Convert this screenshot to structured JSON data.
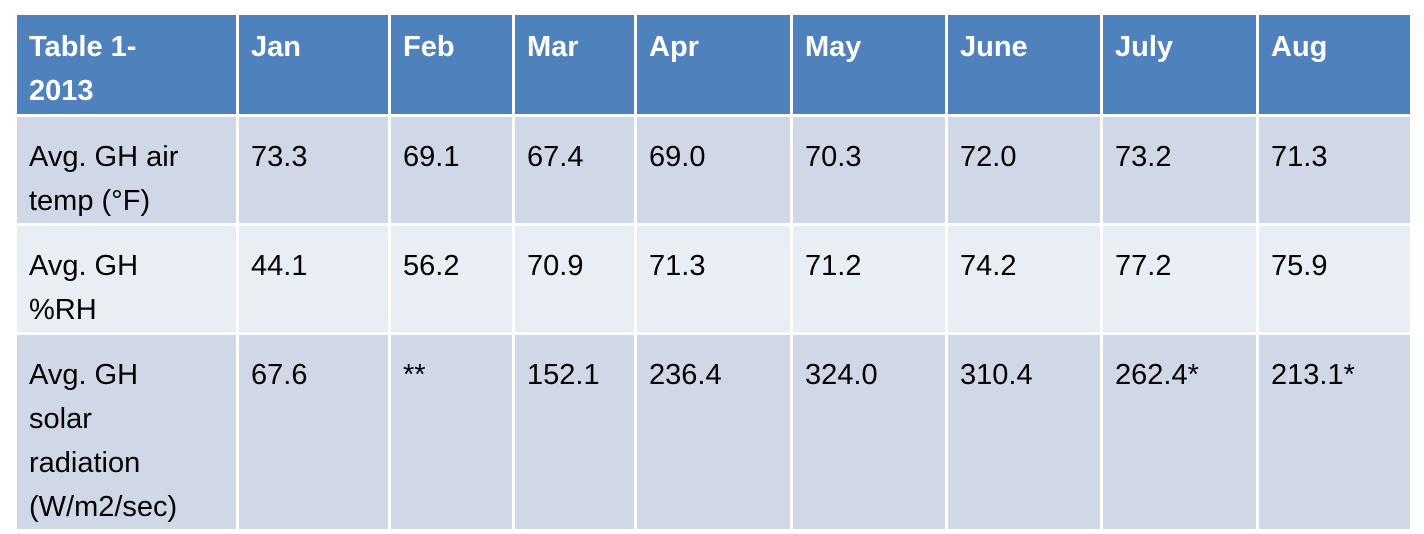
{
  "table": {
    "header": [
      "Table 1-2013",
      "Jan",
      "Feb",
      "Mar",
      "Apr",
      "May",
      "June",
      "July",
      "Aug"
    ],
    "rows": [
      [
        "Avg.  GH air temp (°F)",
        "73.3",
        "69.1",
        "67.4",
        "69.0",
        "70.3",
        "72.0",
        "73.2",
        "71.3"
      ],
      [
        "Avg. GH %RH",
        "44.1",
        "56.2",
        "70.9",
        "71.3",
        "71.2",
        "74.2",
        "77.2",
        "75.9"
      ],
      [
        "Avg. GH solar radiation (W/m2/sec)",
        "67.6",
        "**",
        "152.1",
        "236.4",
        "324.0",
        "310.4",
        "262.4*",
        "213.1*"
      ]
    ]
  }
}
